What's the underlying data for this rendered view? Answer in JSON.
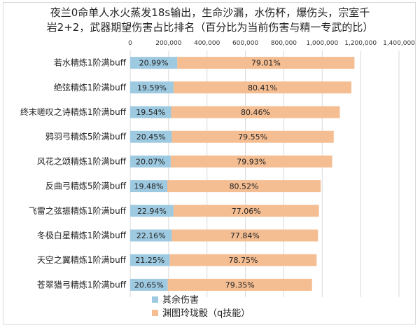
{
  "chart_data": {
    "type": "bar",
    "orientation": "horizontal",
    "stacked": true,
    "title_lines": [
      "夜兰0命单人水火蒸发18s输出，生命沙漏，水伤杯，爆伤头，宗室千",
      "岩2+2，武器期望伤害占比排名（百分比为当前伤害与精一专武的比）"
    ],
    "x_ticks": [
      "0",
      "200,000",
      "400,000",
      "600,000",
      "800,000",
      "1,000,000",
      "1,200,000",
      "1,400,000"
    ],
    "xlim": [
      0,
      1400000
    ],
    "grid": true,
    "legend_position": "bottom",
    "categories": [
      "若水精炼1阶满buff",
      "绝弦精炼1阶满buff",
      "终末嗟叹之诗精炼1阶满buff",
      "鸦羽弓精炼5阶满buff",
      "风花之颂精炼1阶满buff",
      "反曲弓精炼5阶满buff",
      "飞雷之弦振精炼1阶满buff",
      "冬极白星精炼1阶满buff",
      "天空之翼精炼1阶满buff",
      "苍翠猎弓精炼1阶满buff"
    ],
    "totals": [
      1168000,
      1152000,
      1092000,
      1060000,
      1052000,
      992000,
      983000,
      978000,
      971000,
      947000
    ],
    "series": [
      {
        "name": "其余伤害",
        "color": "#9ecae1",
        "labels": [
          "20.99%",
          "19.59%",
          "19.54%",
          "20.45%",
          "20.07%",
          "19.48%",
          "22.94%",
          "22.16%",
          "21.25%",
          "20.65%"
        ],
        "fractions": [
          0.2099,
          0.1959,
          0.1954,
          0.2045,
          0.2007,
          0.1948,
          0.2294,
          0.2216,
          0.2125,
          0.2065
        ]
      },
      {
        "name": "渊图玲珑骰（q技能）",
        "color": "#f4bd92",
        "labels": [
          "79.01%",
          "80.41%",
          "80.46%",
          "79.55%",
          "79.93%",
          "80.52%",
          "77.06%",
          "77.84%",
          "78.75%",
          "79.35%"
        ],
        "fractions": [
          0.7901,
          0.8041,
          0.8046,
          0.7955,
          0.7993,
          0.8052,
          0.7706,
          0.7784,
          0.7875,
          0.7935
        ]
      }
    ]
  }
}
